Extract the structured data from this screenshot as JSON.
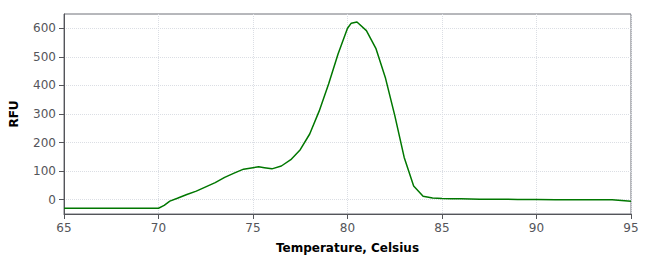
{
  "chart_data": {
    "type": "line",
    "xlabel": "Temperature, Celsius",
    "ylabel": "RFU",
    "x": [
      65.0,
      65.5,
      66.0,
      66.5,
      67.0,
      67.5,
      68.0,
      68.5,
      69.0,
      69.5,
      70.0,
      70.3,
      70.6,
      71.0,
      71.5,
      72.0,
      72.5,
      73.0,
      73.5,
      74.0,
      74.5,
      75.0,
      75.3,
      75.6,
      76.0,
      76.5,
      77.0,
      77.5,
      78.0,
      78.5,
      79.0,
      79.5,
      80.0,
      80.2,
      80.5,
      81.0,
      81.5,
      82.0,
      82.5,
      83.0,
      83.5,
      84.0,
      84.5,
      85.0,
      85.5,
      86.0,
      87.0,
      88.0,
      89.0,
      90.0,
      91.0,
      92.0,
      93.0,
      94.0,
      95.0
    ],
    "values": [
      -30,
      -30,
      -30,
      -30,
      -30,
      -30,
      -30,
      -30,
      -30,
      -30,
      -30,
      -20,
      -5,
      5,
      18,
      30,
      45,
      60,
      78,
      93,
      107,
      112,
      115,
      112,
      108,
      118,
      140,
      175,
      230,
      310,
      405,
      510,
      600,
      618,
      622,
      592,
      530,
      428,
      295,
      148,
      48,
      12,
      6,
      4,
      3,
      3,
      2,
      2,
      1,
      1,
      0,
      0,
      0,
      0,
      -5
    ],
    "color": "#007700",
    "xlim": [
      65,
      95
    ],
    "ylim": [
      -50,
      650
    ],
    "xticks": [
      65,
      70,
      75,
      80,
      85,
      90,
      95
    ],
    "yticks": [
      0,
      100,
      200,
      300,
      400,
      500,
      600
    ],
    "grid": true
  }
}
